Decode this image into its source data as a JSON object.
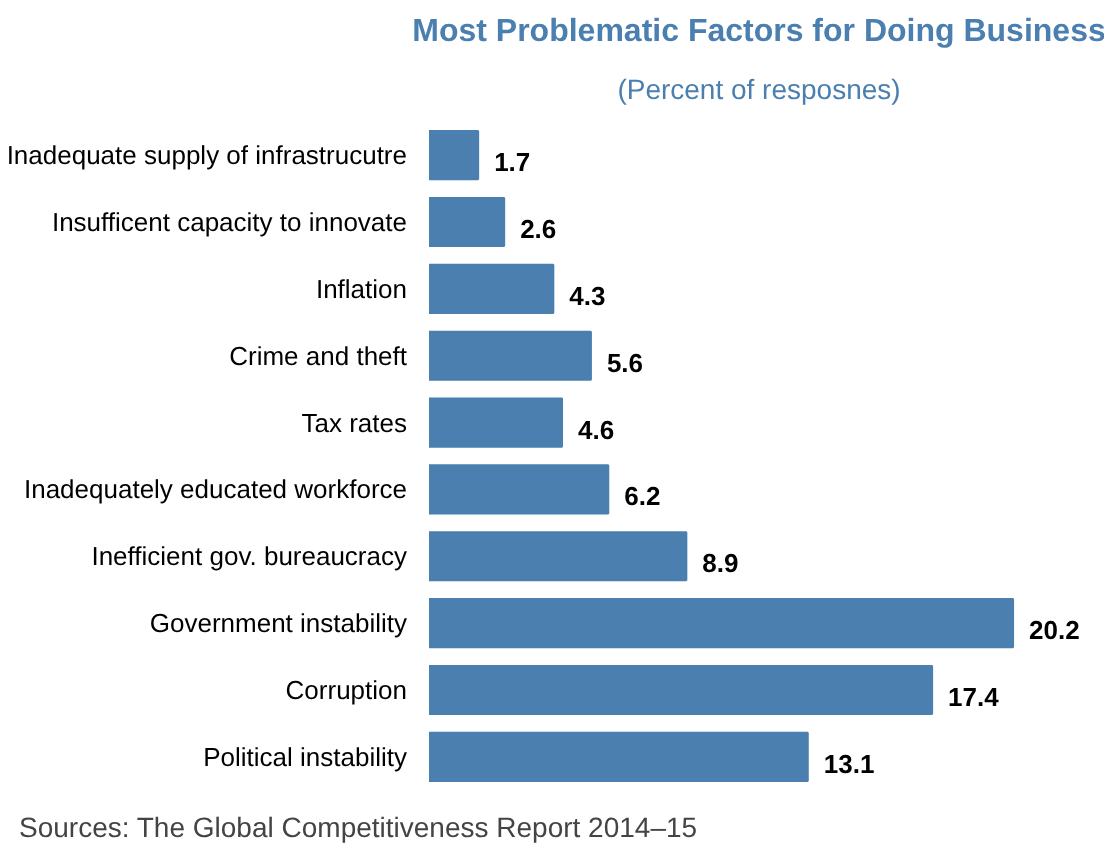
{
  "chart_data": {
    "type": "bar",
    "orientation": "horizontal",
    "title": "Most Problematic Factors for Doing Business",
    "subtitle": "(Percent of resposnes)",
    "categories": [
      "Inadequate supply of infrastrucutre",
      "Insufficent capacity to innovate",
      "Inflation",
      "Crime and theft",
      "Tax rates",
      "Inadequately educated workforce",
      "Inefficient gov. bureaucracy",
      "Government instability",
      "Corruption",
      "Political instability"
    ],
    "values": [
      1.7,
      2.6,
      4.3,
      5.6,
      4.6,
      6.2,
      8.9,
      20.2,
      17.4,
      13.1
    ],
    "color": "#4a7fb0",
    "data_labels": true,
    "grid": false,
    "legend": false,
    "annotations": [
      "Sources: The Global Competitiveness Report 2014–15"
    ]
  }
}
